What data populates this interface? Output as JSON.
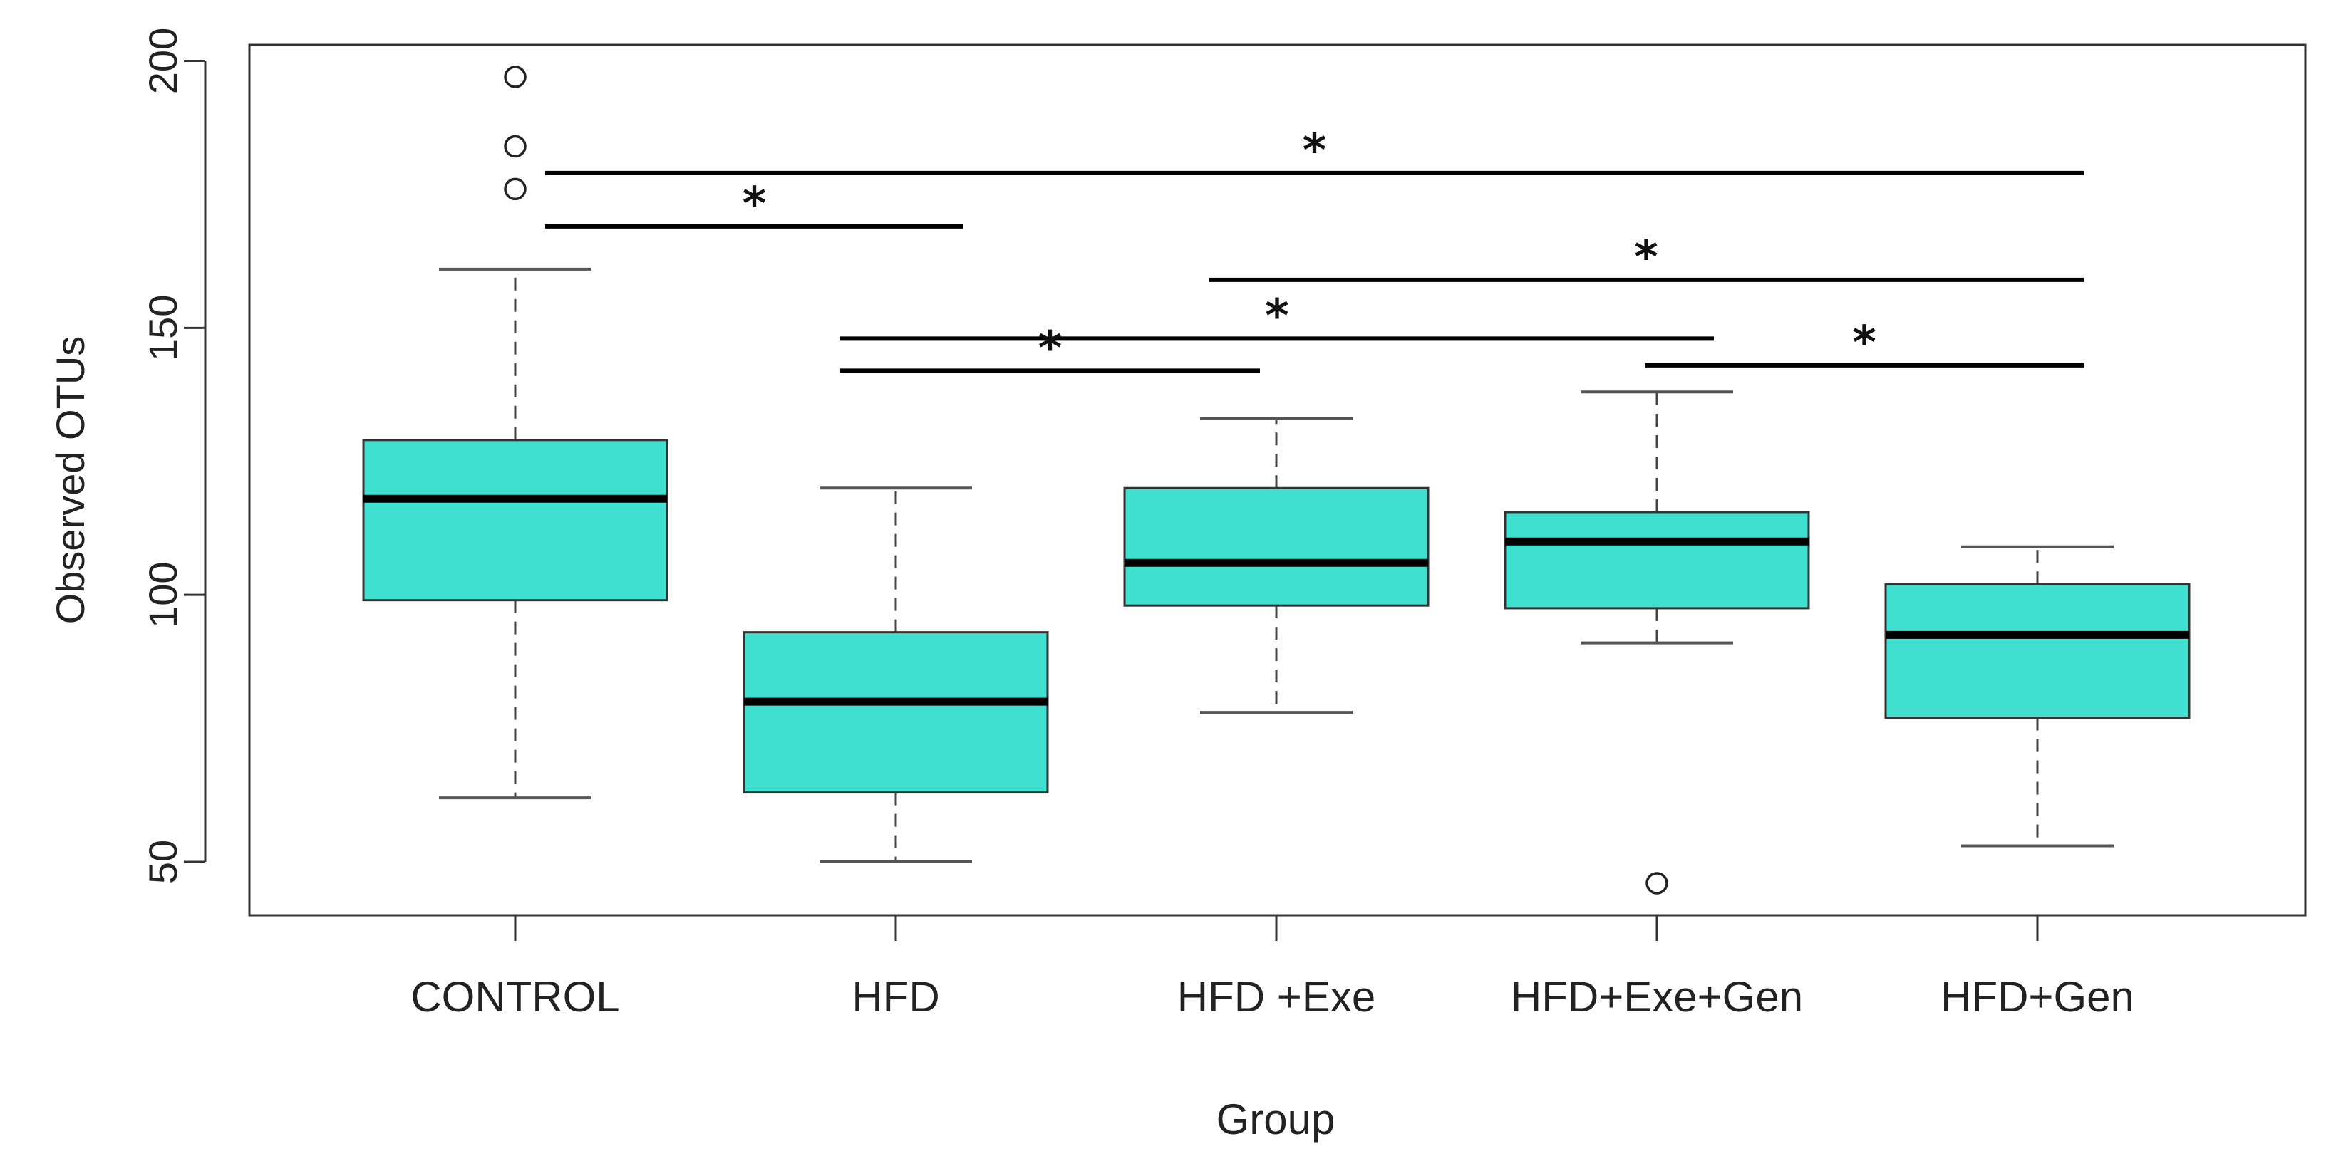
{
  "chart_data": {
    "type": "boxplot",
    "title": "",
    "xlabel": "Group",
    "ylabel": "Observed OTUs",
    "ylim": [
      40,
      203
    ],
    "yticks": [
      50,
      100,
      150,
      200
    ],
    "ytick_labels": [
      "50",
      "100",
      "150",
      "200"
    ],
    "box_color": "#40E0D0",
    "categories": [
      "CONTROL",
      "HFD",
      "HFD +Exe",
      "HFD+Exe+Gen",
      "HFD+Gen"
    ],
    "boxes": [
      {
        "group": "CONTROL",
        "min": 62,
        "q1": 99,
        "median": 118,
        "q3": 129,
        "max": 161,
        "outliers": [
          176,
          184,
          197
        ]
      },
      {
        "group": "HFD",
        "min": 50,
        "q1": 63,
        "median": 80,
        "q3": 93,
        "max": 120,
        "outliers": []
      },
      {
        "group": "HFD +Exe",
        "min": 78,
        "q1": 98,
        "median": 106,
        "q3": 120,
        "max": 133,
        "outliers": []
      },
      {
        "group": "HFD+Exe+Gen",
        "min": 91,
        "q1": 97.5,
        "median": 110,
        "q3": 115.5,
        "max": 138,
        "outliers": [
          46
        ]
      },
      {
        "group": "HFD+Gen",
        "min": 53,
        "q1": 77,
        "median": 92.5,
        "q3": 102,
        "max": 109,
        "outliers": []
      }
    ],
    "significance": [
      {
        "from": "CONTROL",
        "to": "HFD",
        "y": 169,
        "label": "*"
      },
      {
        "from": "CONTROL",
        "to": "HFD+Gen",
        "y": 179,
        "label": "*"
      },
      {
        "from": "HFD +Exe",
        "to": "HFD+Gen",
        "y": 159,
        "label": "*"
      },
      {
        "from": "HFD",
        "to": "HFD+Exe+Gen",
        "y": 148,
        "label": "*"
      },
      {
        "from": "HFD",
        "to": "HFD +Exe",
        "y": 142,
        "label": "*"
      },
      {
        "from": "HFD+Exe+Gen",
        "to": "HFD+Gen",
        "y": 143,
        "label": "*"
      }
    ]
  }
}
